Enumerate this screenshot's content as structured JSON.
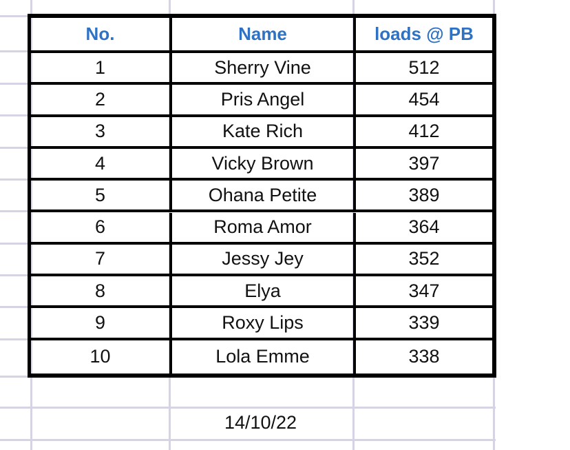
{
  "table": {
    "headers": [
      "No.",
      "Name",
      "loads @ PB"
    ],
    "rows": [
      [
        "1",
        "Sherry Vine",
        "512"
      ],
      [
        "2",
        "Pris Angel",
        "454"
      ],
      [
        "3",
        "Kate Rich",
        "412"
      ],
      [
        "4",
        "Vicky Brown",
        "397"
      ],
      [
        "5",
        "Ohana Petite",
        "389"
      ],
      [
        "6",
        "Roma Amor",
        "364"
      ],
      [
        "7",
        "Jessy Jey",
        "352"
      ],
      [
        "8",
        "Elya",
        "347"
      ],
      [
        "9",
        "Roxy Lips",
        "339"
      ],
      [
        "10",
        "Lola Emme",
        "338"
      ]
    ]
  },
  "date_cell": "14/10/22",
  "colors": {
    "header_text": "#2f72c4",
    "gridline": "#d6d4e4",
    "border": "#000000"
  }
}
